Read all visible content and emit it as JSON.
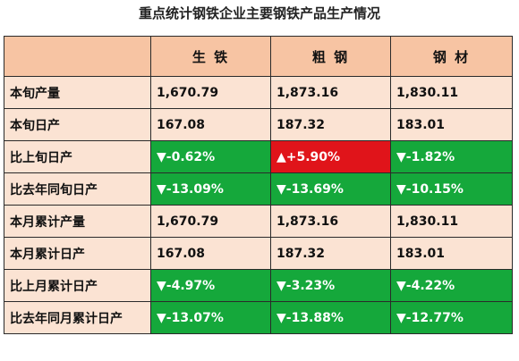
{
  "title": "重点统计钢铁企业主要钢铁产品生产情况",
  "columns": [
    "生 铁",
    "粗 钢",
    "钢 材"
  ],
  "colors": {
    "header_bg": "#f7c4a3",
    "cell_bg": "#fbe3d3",
    "green": "#15a83b",
    "red": "#e0141a"
  },
  "rows": [
    {
      "label": "本旬产量",
      "values": [
        "1,670.79",
        "1,873.16",
        "1,830.11"
      ],
      "styles": [
        "plain",
        "plain",
        "plain"
      ]
    },
    {
      "label": "本旬日产",
      "values": [
        "167.08",
        "187.32",
        "183.01"
      ],
      "styles": [
        "plain",
        "plain",
        "plain"
      ]
    },
    {
      "label": "比上旬日产",
      "values": [
        "▼-0.62%",
        "▲+5.90%",
        "▼-1.82%"
      ],
      "styles": [
        "green",
        "red",
        "green"
      ]
    },
    {
      "label": "比去年同旬日产",
      "values": [
        "▼-13.09%",
        "▼-13.69%",
        "▼-10.15%"
      ],
      "styles": [
        "green",
        "green",
        "green"
      ]
    },
    {
      "label": "本月累计产量",
      "values": [
        "1,670.79",
        "1,873.16",
        "1,830.11"
      ],
      "styles": [
        "plain",
        "plain",
        "plain"
      ]
    },
    {
      "label": "本月累计日产",
      "values": [
        "167.08",
        "187.32",
        "183.01"
      ],
      "styles": [
        "plain",
        "plain",
        "plain"
      ]
    },
    {
      "label": "比上月累计日产",
      "values": [
        "▼-4.97%",
        "▼-3.23%",
        "▼-4.22%"
      ],
      "styles": [
        "green",
        "green",
        "green"
      ]
    },
    {
      "label": "比去年同月累计日产",
      "values": [
        "▼-13.07%",
        "▼-13.88%",
        "▼-12.77%"
      ],
      "styles": [
        "green",
        "green",
        "green"
      ]
    }
  ]
}
